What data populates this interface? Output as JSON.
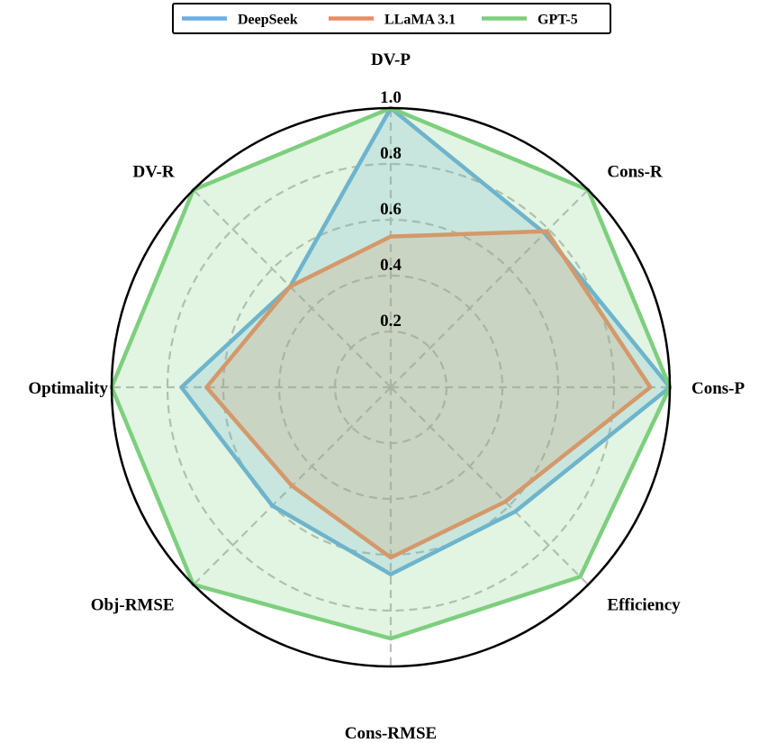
{
  "chart_data": {
    "type": "radar",
    "axes": [
      "DV-P",
      "Cons-R",
      "Cons-P",
      "Efficiency",
      "Cons-RMSE",
      "Obj-RMSE",
      "Optimality",
      "DV-R"
    ],
    "rlim": [
      0,
      1.0
    ],
    "ticks": [
      0.2,
      0.4,
      0.6,
      0.8,
      1.0
    ],
    "tick_labels": [
      "0.2",
      "0.4",
      "0.6",
      "0.8",
      "1.0"
    ],
    "grid": true,
    "legend_position": "top",
    "series": [
      {
        "name": "DeepSeek",
        "color": "#6aaee3",
        "values": [
          1.0,
          0.78,
          1.0,
          0.63,
          0.67,
          0.6,
          0.75,
          0.51
        ]
      },
      {
        "name": "LLaMA 3.1",
        "color": "#ee8a66",
        "values": [
          0.54,
          0.79,
          0.93,
          0.58,
          0.61,
          0.5,
          0.66,
          0.51
        ]
      },
      {
        "name": "GPT-5",
        "color": "#7dcf7d",
        "values": [
          1.0,
          1.0,
          1.0,
          0.96,
          0.9,
          1.0,
          1.0,
          1.0
        ]
      }
    ]
  }
}
